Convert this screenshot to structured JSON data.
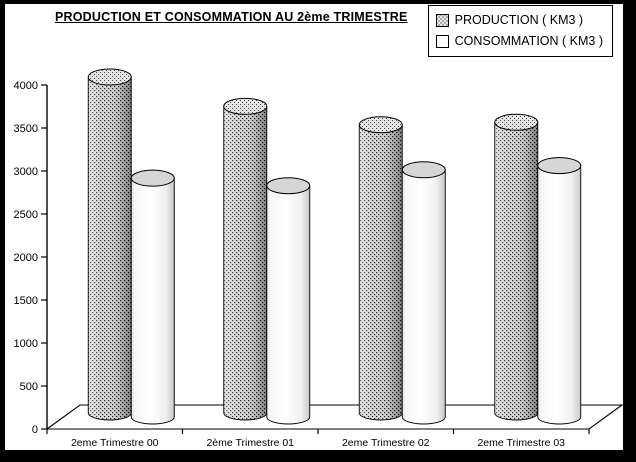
{
  "title": "PRODUCTION ET CONSOMMATION AU 2ème TRIMESTRE",
  "legend": {
    "items": [
      {
        "label": "PRODUCTION ( KM3 )",
        "marker": "dotted-square"
      },
      {
        "label": "CONSOMMATION ( KM3 )",
        "marker": "empty-square"
      }
    ]
  },
  "chart_data": {
    "type": "bar",
    "style": "3d-cylinder",
    "title": "PRODUCTION ET CONSOMMATION AU 2ème TRIMESTRE",
    "categories": [
      "2eme Trimestre 00",
      "2ème Trimestre 01",
      "2eme Trimestre 02",
      "2eme Trimestre 03"
    ],
    "series": [
      {
        "name": "PRODUCTION ( KM3 )",
        "values": [
          4000,
          3650,
          3430,
          3460
        ],
        "fill": "dot-pattern"
      },
      {
        "name": "CONSOMMATION ( KM3 )",
        "values": [
          2840,
          2750,
          2940,
          2990
        ],
        "fill": "#f2f2f2"
      }
    ],
    "xlabel": "",
    "ylabel": "",
    "ylim": [
      0,
      4000
    ],
    "ytick_step": 500,
    "yticks": [
      0,
      500,
      1000,
      1500,
      2000,
      2500,
      3000,
      3500,
      4000
    ],
    "grid": false,
    "legend_position": "top-right"
  },
  "colors": {
    "background": "#ffffff",
    "frame": "#000000",
    "axis": "#000000",
    "production_body": "#d9d9d9",
    "production_dot": "#1a1a1a",
    "consommation_body": "#f4f4f4",
    "cylinder_top_gray": "#d6d6d6"
  }
}
